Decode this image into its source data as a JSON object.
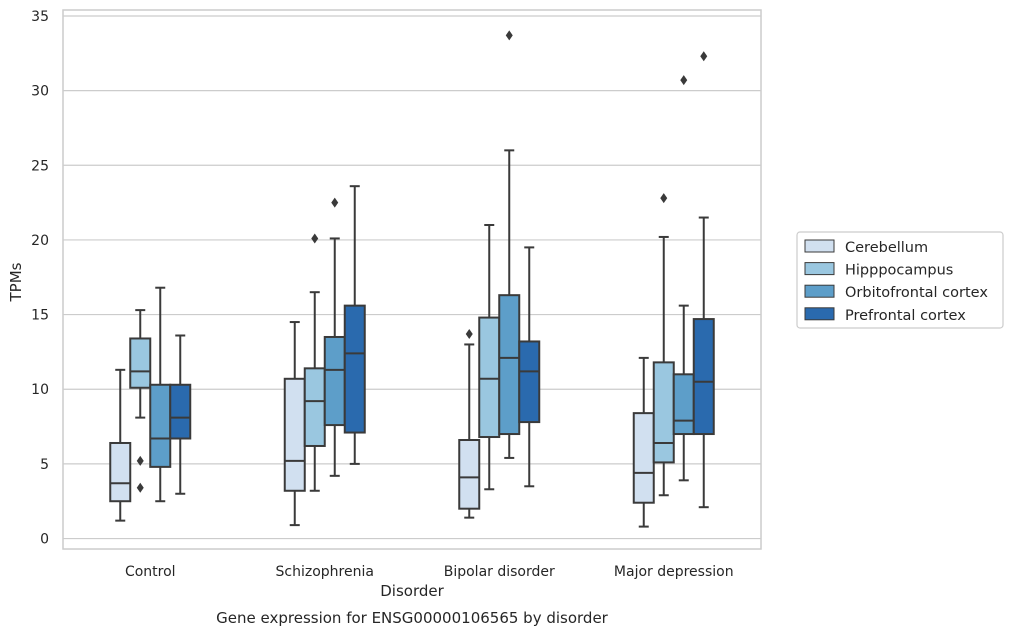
{
  "chart_data": {
    "type": "boxplot",
    "title": "",
    "caption": "Gene expression for ENSG00000106565 by disorder",
    "xlabel": "Disorder",
    "ylabel": "TPMs",
    "ylim": [
      -0.7,
      35.4
    ],
    "yticks": [
      0,
      5,
      10,
      15,
      20,
      25,
      30,
      35
    ],
    "grid": "horizontal",
    "legend_position": "right",
    "categories": [
      "Control",
      "Schizophrenia",
      "Bipolar disorder",
      "Major depression"
    ],
    "series": [
      {
        "name": "Cerebellum",
        "color": "#d1e0f0",
        "boxes": [
          {
            "whisker_low": 1.2,
            "q1": 2.5,
            "median": 3.7,
            "q3": 6.4,
            "whisker_high": 11.3,
            "outliers": []
          },
          {
            "whisker_low": 0.9,
            "q1": 3.2,
            "median": 5.2,
            "q3": 10.7,
            "whisker_high": 14.5,
            "outliers": []
          },
          {
            "whisker_low": 1.4,
            "q1": 2.0,
            "median": 4.1,
            "q3": 6.6,
            "whisker_high": 13.0,
            "outliers": [
              13.7
            ]
          },
          {
            "whisker_low": 0.8,
            "q1": 2.4,
            "median": 4.4,
            "q3": 8.4,
            "whisker_high": 12.1,
            "outliers": []
          }
        ]
      },
      {
        "name": "Hipppocampus",
        "color": "#9ac7e0",
        "boxes": [
          {
            "whisker_low": 8.1,
            "q1": 10.1,
            "median": 11.2,
            "q3": 13.4,
            "whisker_high": 15.3,
            "outliers": [
              5.2,
              3.4
            ]
          },
          {
            "whisker_low": 3.2,
            "q1": 6.2,
            "median": 9.2,
            "q3": 11.4,
            "whisker_high": 16.5,
            "outliers": [
              20.1
            ]
          },
          {
            "whisker_low": 3.3,
            "q1": 6.8,
            "median": 10.7,
            "q3": 14.8,
            "whisker_high": 21.0,
            "outliers": []
          },
          {
            "whisker_low": 2.9,
            "q1": 5.1,
            "median": 6.4,
            "q3": 11.8,
            "whisker_high": 20.2,
            "outliers": [
              22.8
            ]
          }
        ]
      },
      {
        "name": "Orbitofrontal cortex",
        "color": "#5d9ec9",
        "boxes": [
          {
            "whisker_low": 2.5,
            "q1": 4.8,
            "median": 6.7,
            "q3": 10.3,
            "whisker_high": 16.8,
            "outliers": []
          },
          {
            "whisker_low": 4.2,
            "q1": 7.6,
            "median": 11.3,
            "q3": 13.5,
            "whisker_high": 20.1,
            "outliers": [
              22.5
            ]
          },
          {
            "whisker_low": 5.4,
            "q1": 7.0,
            "median": 12.1,
            "q3": 16.3,
            "whisker_high": 26.0,
            "outliers": [
              33.7
            ]
          },
          {
            "whisker_low": 3.9,
            "q1": 7.0,
            "median": 7.9,
            "q3": 11.0,
            "whisker_high": 15.6,
            "outliers": [
              30.7
            ]
          }
        ]
      },
      {
        "name": "Prefrontal cortex",
        "color": "#2a6aae",
        "boxes": [
          {
            "whisker_low": 3.0,
            "q1": 6.7,
            "median": 8.1,
            "q3": 10.3,
            "whisker_high": 13.6,
            "outliers": []
          },
          {
            "whisker_low": 5.0,
            "q1": 7.1,
            "median": 12.4,
            "q3": 15.6,
            "whisker_high": 23.6,
            "outliers": []
          },
          {
            "whisker_low": 3.5,
            "q1": 7.8,
            "median": 11.2,
            "q3": 13.2,
            "whisker_high": 19.5,
            "outliers": []
          },
          {
            "whisker_low": 2.1,
            "q1": 7.0,
            "median": 10.5,
            "q3": 14.7,
            "whisker_high": 21.5,
            "outliers": [
              32.3
            ]
          }
        ]
      }
    ]
  }
}
